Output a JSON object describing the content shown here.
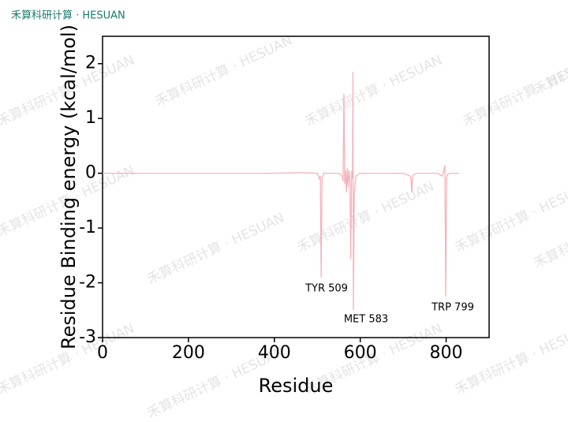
{
  "brand": "禾算科研计算 · HESUAN",
  "chart_data": {
    "type": "line",
    "xlabel": "Residue",
    "ylabel": "Residue Binding energy (kcal/mol)",
    "xlim": [
      0,
      900
    ],
    "ylim": [
      -3,
      2.5
    ],
    "xticks": [
      0,
      200,
      400,
      600,
      800
    ],
    "yticks": [
      -3,
      -2,
      -1,
      0,
      1,
      2
    ],
    "x": [
      0,
      100,
      200,
      300,
      400,
      460,
      500,
      505,
      507,
      509,
      511,
      515,
      550,
      558,
      560,
      562,
      564,
      566,
      568,
      570,
      572,
      574,
      576,
      578,
      580,
      582,
      583,
      584,
      586,
      588,
      590,
      600,
      700,
      716,
      718,
      720,
      722,
      730,
      780,
      790,
      795,
      797,
      799,
      801,
      803,
      810,
      830
    ],
    "series": [
      {
        "color": "#f4b3ba",
        "values": [
          0,
          0,
          0,
          0,
          0,
          0.01,
          0,
          -0.1,
          -0.05,
          -1.9,
          -0.1,
          0,
          0,
          -0.05,
          -0.15,
          1.45,
          -0.2,
          0.05,
          -0.35,
          0.1,
          -0.25,
          0.05,
          -0.1,
          -1.57,
          0.05,
          -0.1,
          1.85,
          -2.5,
          -0.4,
          -0.2,
          -0.05,
          0,
          0,
          -0.05,
          -0.1,
          -0.35,
          -0.05,
          0,
          0,
          -0.05,
          0.05,
          0.15,
          -2.25,
          -0.1,
          -0.02,
          0,
          0
        ]
      }
    ],
    "annotations": [
      {
        "text": "TYR 509"
      },
      {
        "text": "MET 583"
      },
      {
        "text": "TRP 799"
      }
    ]
  }
}
